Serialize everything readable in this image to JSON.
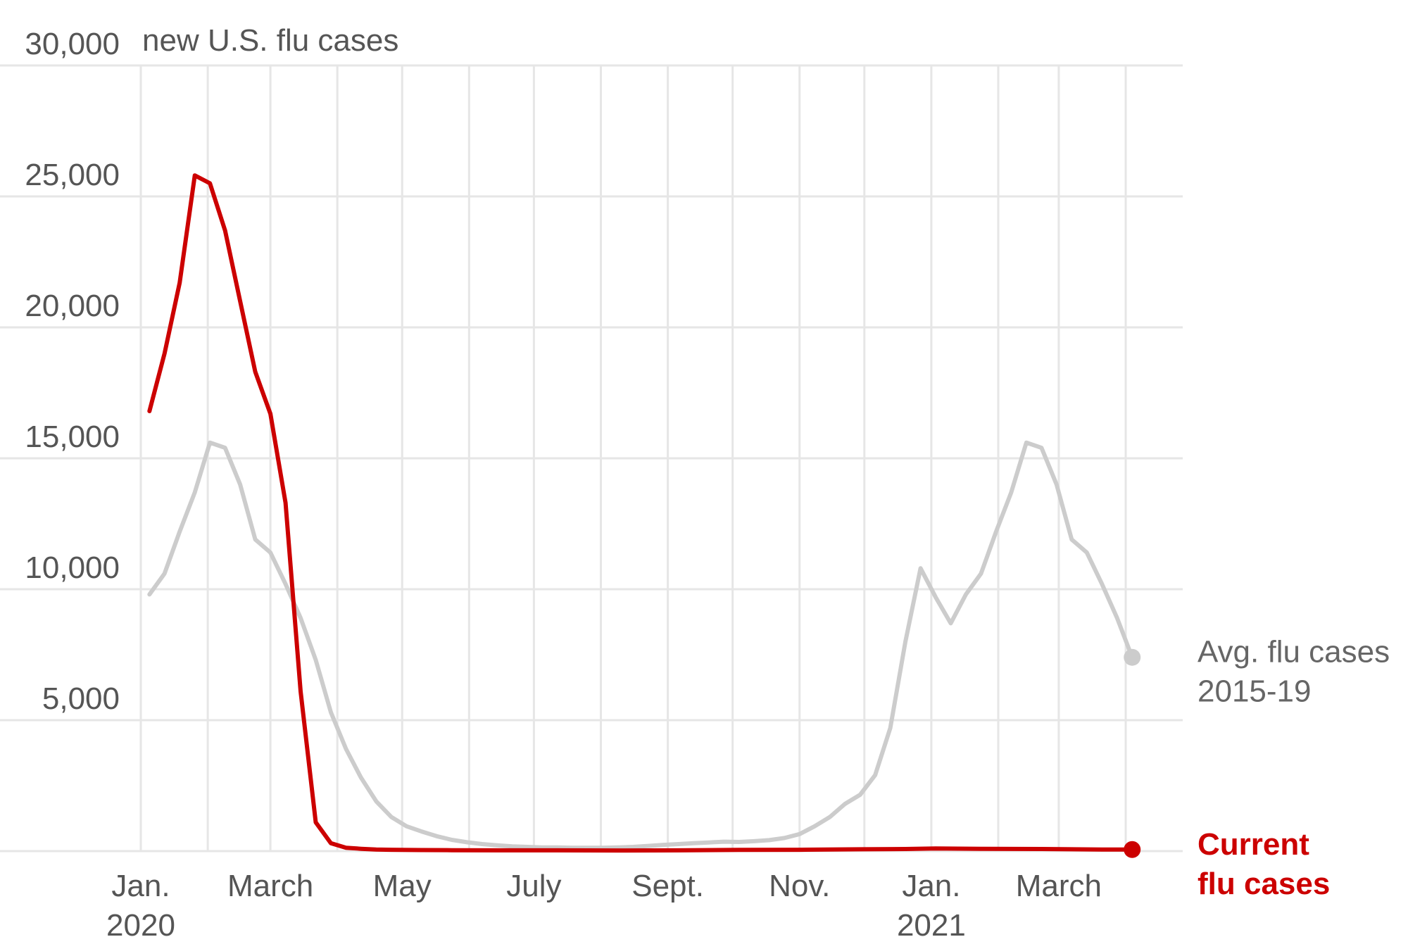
{
  "chart_data": {
    "type": "line",
    "unit_label": "new U.S. flu cases",
    "ylim": [
      0,
      30000
    ],
    "y_ticks": [
      {
        "value": 30000,
        "label": "30,000"
      },
      {
        "value": 25000,
        "label": "25,000"
      },
      {
        "value": 20000,
        "label": "20,000"
      },
      {
        "value": 15000,
        "label": "15,000"
      },
      {
        "value": 10000,
        "label": "10,000"
      },
      {
        "value": 5000,
        "label": "5,000"
      }
    ],
    "x_range": [
      "2020-01-01",
      "2021-04-30"
    ],
    "x_ticks": [
      {
        "date": "2020-01-01",
        "label": "Jan.",
        "sublabel": "2020"
      },
      {
        "date": "2020-03-01",
        "label": "March",
        "sublabel": ""
      },
      {
        "date": "2020-05-01",
        "label": "May",
        "sublabel": ""
      },
      {
        "date": "2020-07-01",
        "label": "July",
        "sublabel": ""
      },
      {
        "date": "2020-09-01",
        "label": "Sept.",
        "sublabel": ""
      },
      {
        "date": "2020-11-01",
        "label": "Nov.",
        "sublabel": ""
      },
      {
        "date": "2021-01-01",
        "label": "Jan.",
        "sublabel": "2021"
      },
      {
        "date": "2021-03-01",
        "label": "March",
        "sublabel": ""
      }
    ],
    "grid": true,
    "series": [
      {
        "name": "Avg. flu cases 2015-19",
        "label_lines": [
          "Avg. flu cases",
          "2015-19"
        ],
        "color": "#cccccc",
        "end_marker": true,
        "points": [
          [
            "2020-01-05",
            9800
          ],
          [
            "2020-01-12",
            10600
          ],
          [
            "2020-01-19",
            12200
          ],
          [
            "2020-01-26",
            13700
          ],
          [
            "2020-02-02",
            15600
          ],
          [
            "2020-02-09",
            15400
          ],
          [
            "2020-02-16",
            14000
          ],
          [
            "2020-02-23",
            11900
          ],
          [
            "2020-03-01",
            11400
          ],
          [
            "2020-03-08",
            10200
          ],
          [
            "2020-03-15",
            8900
          ],
          [
            "2020-03-22",
            7300
          ],
          [
            "2020-03-29",
            5300
          ],
          [
            "2020-04-05",
            3900
          ],
          [
            "2020-04-12",
            2800
          ],
          [
            "2020-04-19",
            1900
          ],
          [
            "2020-04-26",
            1300
          ],
          [
            "2020-05-03",
            950
          ],
          [
            "2020-05-10",
            750
          ],
          [
            "2020-05-17",
            570
          ],
          [
            "2020-05-24",
            430
          ],
          [
            "2020-05-31",
            340
          ],
          [
            "2020-06-07",
            270
          ],
          [
            "2020-06-14",
            220
          ],
          [
            "2020-06-21",
            180
          ],
          [
            "2020-06-28",
            160
          ],
          [
            "2020-07-05",
            140
          ],
          [
            "2020-07-12",
            140
          ],
          [
            "2020-07-19",
            130
          ],
          [
            "2020-07-26",
            130
          ],
          [
            "2020-08-02",
            130
          ],
          [
            "2020-08-09",
            140
          ],
          [
            "2020-08-16",
            160
          ],
          [
            "2020-08-23",
            200
          ],
          [
            "2020-08-30",
            240
          ],
          [
            "2020-09-06",
            270
          ],
          [
            "2020-09-13",
            300
          ],
          [
            "2020-09-20",
            330
          ],
          [
            "2020-09-27",
            360
          ],
          [
            "2020-10-04",
            350
          ],
          [
            "2020-10-11",
            380
          ],
          [
            "2020-10-18",
            420
          ],
          [
            "2020-10-25",
            500
          ],
          [
            "2020-11-01",
            650
          ],
          [
            "2020-11-08",
            950
          ],
          [
            "2020-11-15",
            1300
          ],
          [
            "2020-11-22",
            1800
          ],
          [
            "2020-11-29",
            2150
          ],
          [
            "2020-12-06",
            2900
          ],
          [
            "2020-12-13",
            4700
          ],
          [
            "2020-12-20",
            8000
          ],
          [
            "2020-12-27",
            10800
          ],
          [
            "2021-01-03",
            9700
          ],
          [
            "2021-01-10",
            8700
          ],
          [
            "2021-01-17",
            9800
          ],
          [
            "2021-01-24",
            10600
          ],
          [
            "2021-01-31",
            12200
          ],
          [
            "2021-02-07",
            13700
          ],
          [
            "2021-02-14",
            15600
          ],
          [
            "2021-02-21",
            15400
          ],
          [
            "2021-02-28",
            14000
          ],
          [
            "2021-03-07",
            11900
          ],
          [
            "2021-03-14",
            11400
          ],
          [
            "2021-03-21",
            10200
          ],
          [
            "2021-03-28",
            8900
          ],
          [
            "2021-04-04",
            7400
          ]
        ]
      },
      {
        "name": "Current flu cases",
        "label_lines": [
          "Current",
          "flu cases"
        ],
        "color": "#cc0000",
        "end_marker": true,
        "points": [
          [
            "2020-01-05",
            16800
          ],
          [
            "2020-01-12",
            19000
          ],
          [
            "2020-01-19",
            21700
          ],
          [
            "2020-01-26",
            25800
          ],
          [
            "2020-02-02",
            25500
          ],
          [
            "2020-02-09",
            23700
          ],
          [
            "2020-02-16",
            21000
          ],
          [
            "2020-02-23",
            18300
          ],
          [
            "2020-03-01",
            16700
          ],
          [
            "2020-03-08",
            13300
          ],
          [
            "2020-03-15",
            6100
          ],
          [
            "2020-03-22",
            1100
          ],
          [
            "2020-03-29",
            300
          ],
          [
            "2020-04-05",
            130
          ],
          [
            "2020-04-12",
            90
          ],
          [
            "2020-04-19",
            60
          ],
          [
            "2020-04-26",
            50
          ],
          [
            "2020-05-10",
            40
          ],
          [
            "2020-05-24",
            35
          ],
          [
            "2020-06-14",
            30
          ],
          [
            "2020-07-12",
            30
          ],
          [
            "2020-08-09",
            25
          ],
          [
            "2020-09-06",
            30
          ],
          [
            "2020-10-04",
            45
          ],
          [
            "2020-11-01",
            50
          ],
          [
            "2020-11-29",
            70
          ],
          [
            "2020-12-20",
            80
          ],
          [
            "2021-01-03",
            100
          ],
          [
            "2021-01-24",
            90
          ],
          [
            "2021-02-21",
            80
          ],
          [
            "2021-03-21",
            60
          ],
          [
            "2021-04-04",
            60
          ]
        ]
      }
    ]
  }
}
